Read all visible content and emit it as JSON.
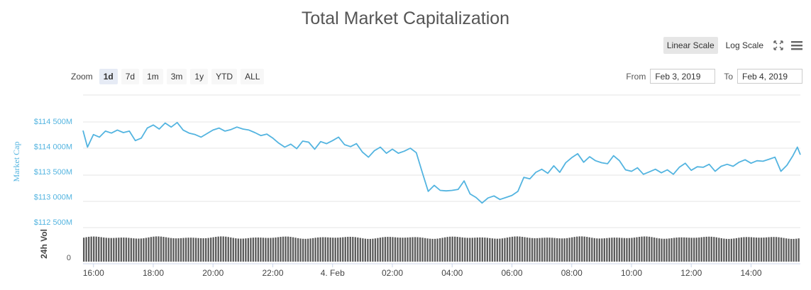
{
  "title": "Total Market Capitalization",
  "controls": {
    "linear_scale": "Linear Scale",
    "log_scale": "Log Scale",
    "zoom_label": "Zoom",
    "zoom_buttons": [
      "1d",
      "7d",
      "1m",
      "3m",
      "1y",
      "YTD",
      "ALL"
    ],
    "zoom_active": "1d",
    "from_label": "From",
    "to_label": "To",
    "from_value": "Feb 3, 2019",
    "to_value": "Feb 4, 2019"
  },
  "colors": {
    "line": "#53b4e0",
    "axis_text": "#53b4e0",
    "volume": "#5a5a5a",
    "grid": "#e6e6e6"
  },
  "chart_data": {
    "type": "line",
    "ylabel": "Market Cap",
    "ylabel_volume": "24h Vol",
    "volume_tick": "0",
    "y_tick_values": [
      112500,
      113000,
      113500,
      114000,
      114500
    ],
    "y_tick_labels": [
      "$112 500M",
      "$113 000M",
      "$113 500M",
      "$114 000M",
      "$114 500M"
    ],
    "ylim": [
      112500,
      114700
    ],
    "x_tick_labels": [
      "16:00",
      "18:00",
      "20:00",
      "22:00",
      "4. Feb",
      "02:00",
      "04:00",
      "06:00",
      "08:00",
      "10:00",
      "12:00",
      "14:00"
    ],
    "x_tick_hours": [
      16,
      18,
      20,
      22,
      24,
      26,
      28,
      30,
      32,
      34,
      36,
      38
    ],
    "xlim_hours": [
      15.65,
      39.65
    ],
    "x_unit": "hour (Feb 3 00:00 = 0)",
    "y_unit": "USD millions",
    "line_points": [
      [
        15.65,
        114430
      ],
      [
        15.8,
        114100
      ],
      [
        16.0,
        114350
      ],
      [
        16.2,
        114300
      ],
      [
        16.4,
        114420
      ],
      [
        16.6,
        114380
      ],
      [
        16.8,
        114440
      ],
      [
        17.0,
        114390
      ],
      [
        17.2,
        114420
      ],
      [
        17.4,
        114230
      ],
      [
        17.6,
        114280
      ],
      [
        17.8,
        114480
      ],
      [
        18.0,
        114540
      ],
      [
        18.2,
        114460
      ],
      [
        18.4,
        114580
      ],
      [
        18.6,
        114500
      ],
      [
        18.8,
        114590
      ],
      [
        19.0,
        114440
      ],
      [
        19.2,
        114380
      ],
      [
        19.4,
        114350
      ],
      [
        19.6,
        114300
      ],
      [
        19.8,
        114370
      ],
      [
        20.0,
        114440
      ],
      [
        20.2,
        114480
      ],
      [
        20.4,
        114420
      ],
      [
        20.6,
        114450
      ],
      [
        20.8,
        114500
      ],
      [
        21.0,
        114460
      ],
      [
        21.2,
        114440
      ],
      [
        21.4,
        114390
      ],
      [
        21.6,
        114330
      ],
      [
        21.8,
        114360
      ],
      [
        22.0,
        114280
      ],
      [
        22.2,
        114180
      ],
      [
        22.4,
        114100
      ],
      [
        22.6,
        114160
      ],
      [
        22.8,
        114070
      ],
      [
        23.0,
        114220
      ],
      [
        23.2,
        114200
      ],
      [
        23.4,
        114060
      ],
      [
        23.6,
        114210
      ],
      [
        23.8,
        114170
      ],
      [
        24.0,
        114230
      ],
      [
        24.2,
        114300
      ],
      [
        24.4,
        114150
      ],
      [
        24.6,
        114110
      ],
      [
        24.8,
        114170
      ],
      [
        25.0,
        114000
      ],
      [
        25.2,
        113900
      ],
      [
        25.4,
        114030
      ],
      [
        25.6,
        114100
      ],
      [
        25.8,
        113980
      ],
      [
        26.0,
        114060
      ],
      [
        26.2,
        113980
      ],
      [
        26.4,
        114020
      ],
      [
        26.6,
        114080
      ],
      [
        26.8,
        113990
      ],
      [
        27.0,
        113600
      ],
      [
        27.2,
        113220
      ],
      [
        27.4,
        113340
      ],
      [
        27.6,
        113240
      ],
      [
        27.8,
        113230
      ],
      [
        28.0,
        113240
      ],
      [
        28.2,
        113260
      ],
      [
        28.4,
        113430
      ],
      [
        28.6,
        113170
      ],
      [
        28.8,
        113100
      ],
      [
        29.0,
        112990
      ],
      [
        29.2,
        113090
      ],
      [
        29.4,
        113130
      ],
      [
        29.6,
        113060
      ],
      [
        29.8,
        113100
      ],
      [
        30.0,
        113140
      ],
      [
        30.2,
        113220
      ],
      [
        30.4,
        113500
      ],
      [
        30.6,
        113470
      ],
      [
        30.8,
        113600
      ],
      [
        31.0,
        113660
      ],
      [
        31.2,
        113580
      ],
      [
        31.4,
        113730
      ],
      [
        31.6,
        113600
      ],
      [
        31.8,
        113790
      ],
      [
        32.0,
        113890
      ],
      [
        32.2,
        113970
      ],
      [
        32.4,
        113800
      ],
      [
        32.6,
        113910
      ],
      [
        32.8,
        113830
      ],
      [
        33.0,
        113790
      ],
      [
        33.2,
        113770
      ],
      [
        33.4,
        113930
      ],
      [
        33.6,
        113830
      ],
      [
        33.8,
        113650
      ],
      [
        34.0,
        113620
      ],
      [
        34.2,
        113690
      ],
      [
        34.4,
        113560
      ],
      [
        34.6,
        113610
      ],
      [
        34.8,
        113660
      ],
      [
        35.0,
        113590
      ],
      [
        35.2,
        113650
      ],
      [
        35.4,
        113560
      ],
      [
        35.6,
        113700
      ],
      [
        35.8,
        113780
      ],
      [
        36.0,
        113640
      ],
      [
        36.2,
        113710
      ],
      [
        36.4,
        113700
      ],
      [
        36.6,
        113760
      ],
      [
        36.8,
        113620
      ],
      [
        37.0,
        113720
      ],
      [
        37.2,
        113760
      ],
      [
        37.4,
        113720
      ],
      [
        37.6,
        113800
      ],
      [
        37.8,
        113850
      ],
      [
        38.0,
        113780
      ],
      [
        38.2,
        113830
      ],
      [
        38.4,
        113820
      ],
      [
        38.6,
        113860
      ],
      [
        38.8,
        113900
      ],
      [
        39.0,
        113620
      ],
      [
        39.2,
        113740
      ],
      [
        39.4,
        113930
      ],
      [
        39.55,
        114100
      ],
      [
        39.65,
        113950
      ]
    ]
  }
}
